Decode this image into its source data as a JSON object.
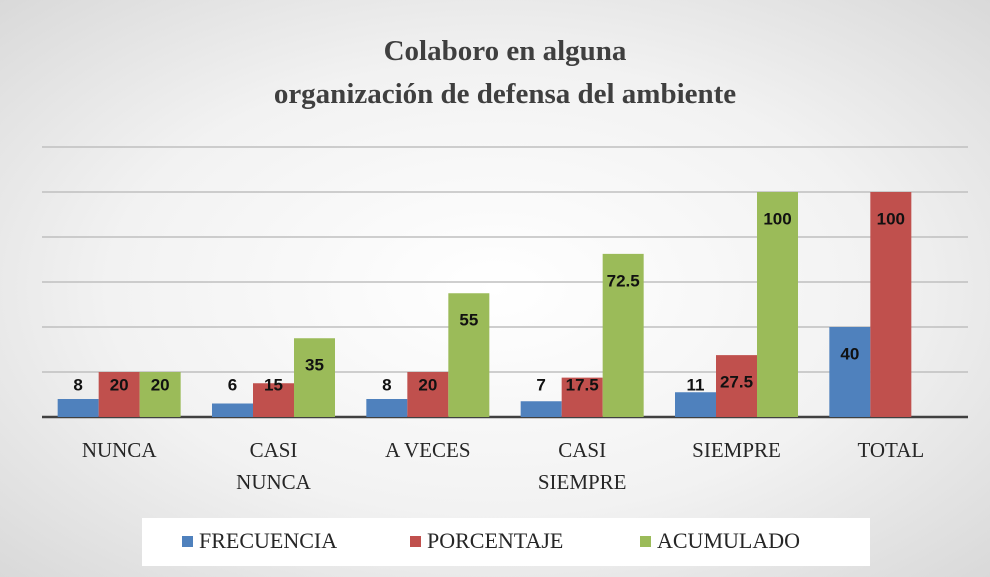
{
  "chart_data": {
    "type": "bar",
    "title": [
      "Colaboro  en alguna",
      "organización de defensa del ambiente"
    ],
    "categories": [
      "NUNCA",
      "CASI NUNCA",
      "A VECES",
      "CASI SIEMPRE",
      "SIEMPRE",
      "TOTAL"
    ],
    "series": [
      {
        "name": "FRECUENCIA",
        "color": "#4f81bd",
        "values": [
          8,
          6,
          8,
          7,
          11,
          40
        ]
      },
      {
        "name": "PORCENTAJE",
        "color": "#c0504d",
        "values": [
          20,
          15,
          20,
          17.5,
          27.5,
          100
        ]
      },
      {
        "name": "ACUMULADO",
        "color": "#9bbb59",
        "values": [
          20,
          35,
          55,
          72.5,
          100,
          null
        ]
      }
    ],
    "ylim": [
      0,
      120
    ],
    "yticks": [
      0,
      20,
      40,
      60,
      80,
      100,
      120
    ],
    "grid": true,
    "legend": "bottom"
  }
}
